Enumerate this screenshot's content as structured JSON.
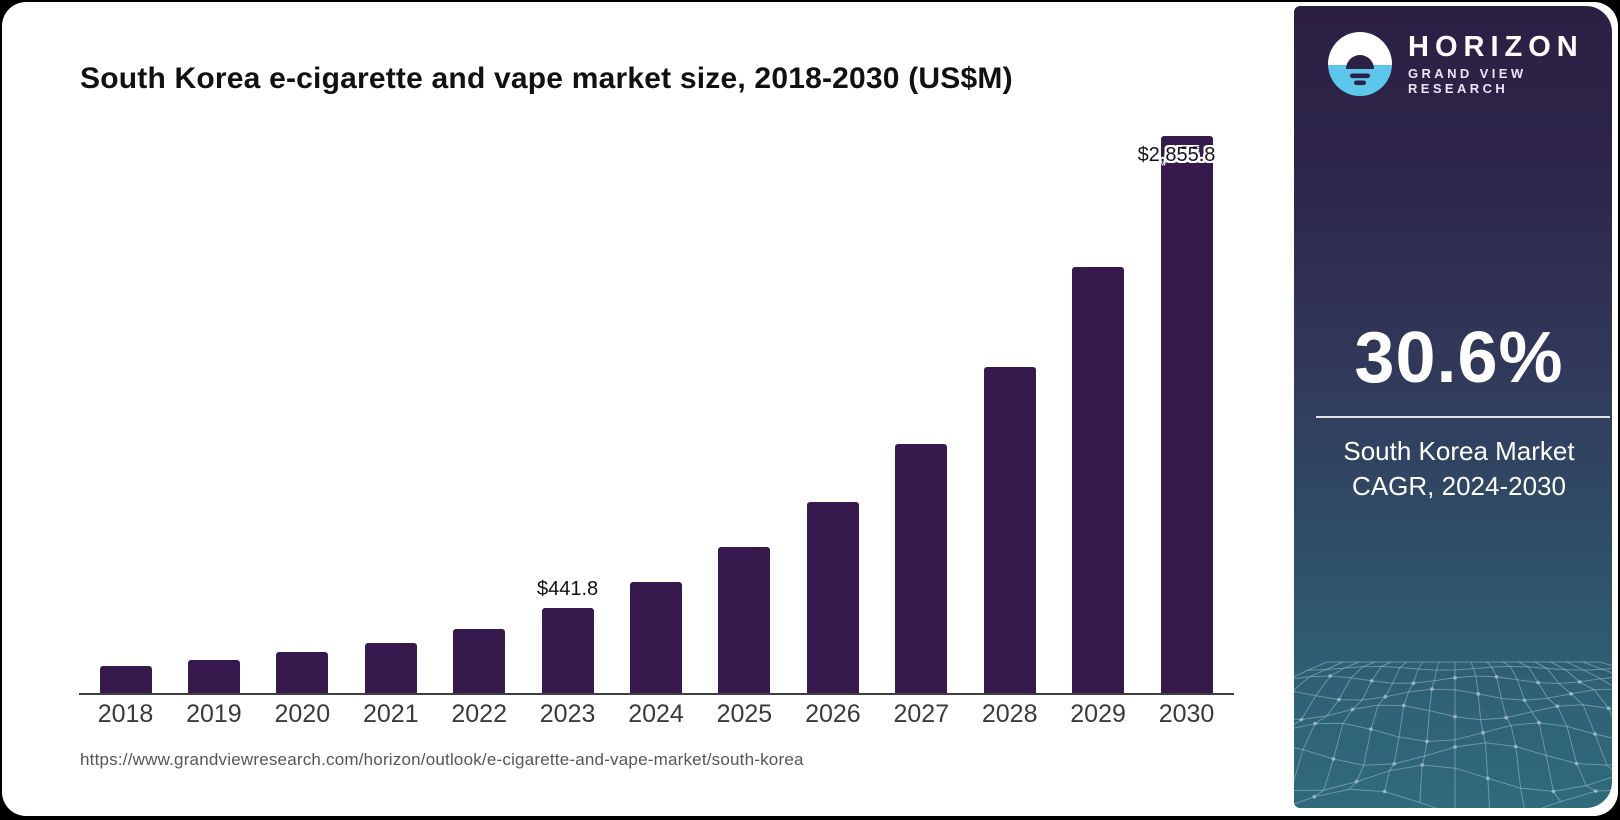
{
  "page": {
    "background": "#000000"
  },
  "chart": {
    "title": "South Korea e-cigarette and vape market size, 2018-2030 (US$M)",
    "source_url": "https://www.grandviewresearch.com/horizon/outlook/e-cigarette-and-vape-market/south-korea",
    "bar_color": "#371a4d",
    "axis_color": "#3f3f3f"
  },
  "chart_data": {
    "type": "bar",
    "title": "South Korea e-cigarette and vape market size, 2018-2030 (US$M)",
    "categories": [
      "2018",
      "2019",
      "2020",
      "2021",
      "2022",
      "2023",
      "2024",
      "2025",
      "2026",
      "2027",
      "2028",
      "2029",
      "2030"
    ],
    "values": [
      145.8,
      176.5,
      214.9,
      261.0,
      332.6,
      441.8,
      575.5,
      751.6,
      981.6,
      1282.0,
      1674.3,
      2186.6,
      2855.8
    ],
    "xlabel": "",
    "ylabel": "US$M",
    "ylim": [
      0,
      2900
    ],
    "grid": false,
    "legend": false,
    "data_labels": {
      "2023": "$441.8",
      "2030": "$2,855.8"
    }
  },
  "sidebar": {
    "brand": {
      "name": "HORIZON",
      "subtitle": "GRAND VIEW RESEARCH",
      "icon": "horizon-sun-logo",
      "icon_blue": "#5ec6ea",
      "icon_dark": "#2e2147"
    },
    "stat": {
      "value": "30.6%",
      "caption": "South Korea Market CAGR, 2024-2030"
    },
    "gradient_top": "#2b2044",
    "gradient_bottom": "#306b7b"
  }
}
